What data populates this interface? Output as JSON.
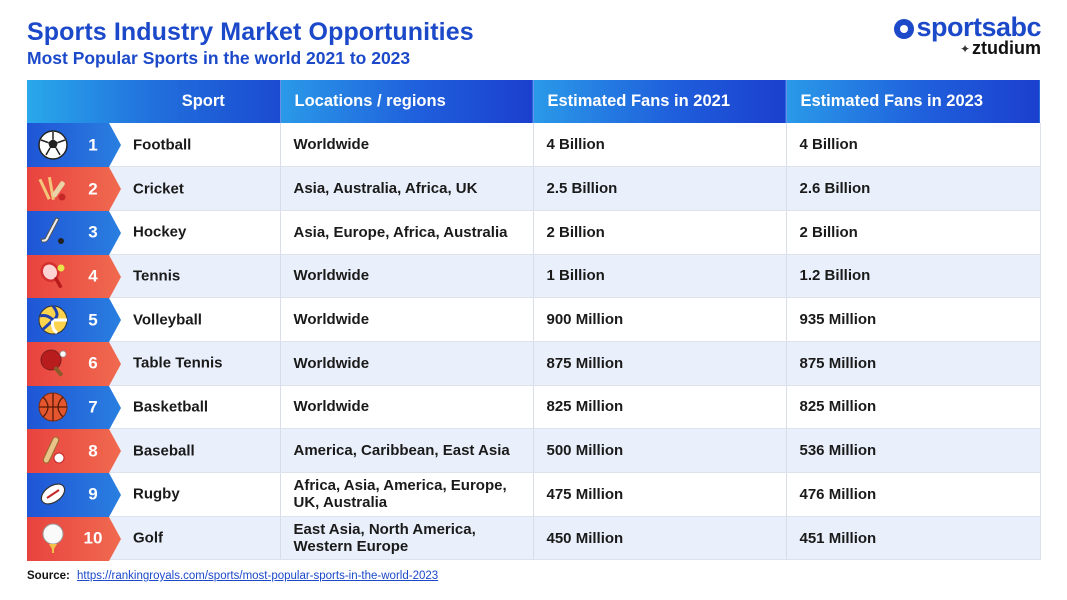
{
  "header": {
    "title": "Sports Industry Market Opportunities",
    "subtitle": "Most Popular Sports in the world 2021 to 2023"
  },
  "logo": {
    "line1": "sportsabc",
    "line2": "ztudium"
  },
  "table": {
    "columns": [
      "Sport",
      "Locations / regions",
      "Estimated Fans in 2021",
      "Estimated Fans in 2023"
    ],
    "rows": [
      {
        "rank": "1",
        "sport": "Football",
        "icon": "soccer-ball-icon",
        "badge": "blue",
        "regions": "Worldwide",
        "fans_2021": "4 Billion",
        "fans_2023": "4 Billion"
      },
      {
        "rank": "2",
        "sport": "Cricket",
        "icon": "cricket-icon",
        "badge": "red",
        "regions": "Asia, Australia, Africa, UK",
        "fans_2021": "2.5 Billion",
        "fans_2023": "2.6 Billion"
      },
      {
        "rank": "3",
        "sport": "Hockey",
        "icon": "hockey-stick-icon",
        "badge": "blue",
        "regions": "Asia, Europe, Africa, Australia",
        "fans_2021": "2 Billion",
        "fans_2023": "2 Billion"
      },
      {
        "rank": "4",
        "sport": "Tennis",
        "icon": "tennis-racket-icon",
        "badge": "red",
        "regions": "Worldwide",
        "fans_2021": "1 Billion",
        "fans_2023": "1.2 Billion"
      },
      {
        "rank": "5",
        "sport": "Volleyball",
        "icon": "volleyball-icon",
        "badge": "blue",
        "regions": "Worldwide",
        "fans_2021": "900 Million",
        "fans_2023": "935 Million"
      },
      {
        "rank": "6",
        "sport": "Table Tennis",
        "icon": "ping-pong-paddle-icon",
        "badge": "red",
        "regions": "Worldwide",
        "fans_2021": "875 Million",
        "fans_2023": "875 Million"
      },
      {
        "rank": "7",
        "sport": "Basketball",
        "icon": "basketball-icon",
        "badge": "blue",
        "regions": "Worldwide",
        "fans_2021": "825 Million",
        "fans_2023": "825 Million"
      },
      {
        "rank": "8",
        "sport": "Baseball",
        "icon": "baseball-bat-icon",
        "badge": "red",
        "regions": "America, Caribbean, East Asia",
        "fans_2021": "500 Million",
        "fans_2023": "536 Million"
      },
      {
        "rank": "9",
        "sport": "Rugby",
        "icon": "rugby-ball-icon",
        "badge": "blue",
        "regions": "Africa, Asia, America, Europe, UK,  Australia",
        "fans_2021": "475 Million",
        "fans_2023": "476 Million"
      },
      {
        "rank": "10",
        "sport": "Golf",
        "icon": "golf-ball-icon",
        "badge": "red",
        "regions": "East Asia, North America, Western Europe",
        "fans_2021": "450 Million",
        "fans_2023": "451 Million"
      }
    ]
  },
  "footer": {
    "source_label": "Source:",
    "source_url": "https://rankingroyals.com/sports/most-popular-sports-in-the-world-2023"
  },
  "colors": {
    "brand_blue": "#1b49c9",
    "badge_blue": "#1f55d6",
    "badge_red": "#e8433f",
    "row_stripe": "#eaf0fb"
  }
}
